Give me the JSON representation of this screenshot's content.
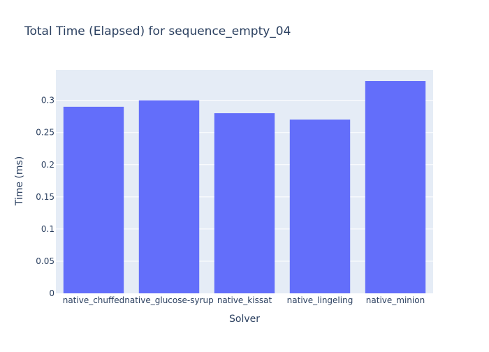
{
  "chart_data": {
    "type": "bar",
    "title": "Total Time (Elapsed) for sequence_empty_04",
    "xlabel": "Solver",
    "ylabel": "Time (ms)",
    "categories": [
      "native_chuffed",
      "native_glucose-syrup",
      "native_kissat",
      "native_lingeling",
      "native_minion"
    ],
    "values": [
      0.29,
      0.3,
      0.28,
      0.27,
      0.33
    ],
    "ylim": [
      0,
      0.3474
    ],
    "yticks": [
      0,
      0.05,
      0.1,
      0.15,
      0.2,
      0.25,
      0.3
    ],
    "ytick_labels": [
      "0",
      "0.05",
      "0.1",
      "0.15",
      "0.2",
      "0.25",
      "0.3"
    ],
    "grid": true,
    "legend": "none",
    "colors": {
      "bar": "#636efa",
      "plot_bg": "#e5ecf6",
      "grid": "#ffffff",
      "text": "#2a3f5f"
    }
  }
}
